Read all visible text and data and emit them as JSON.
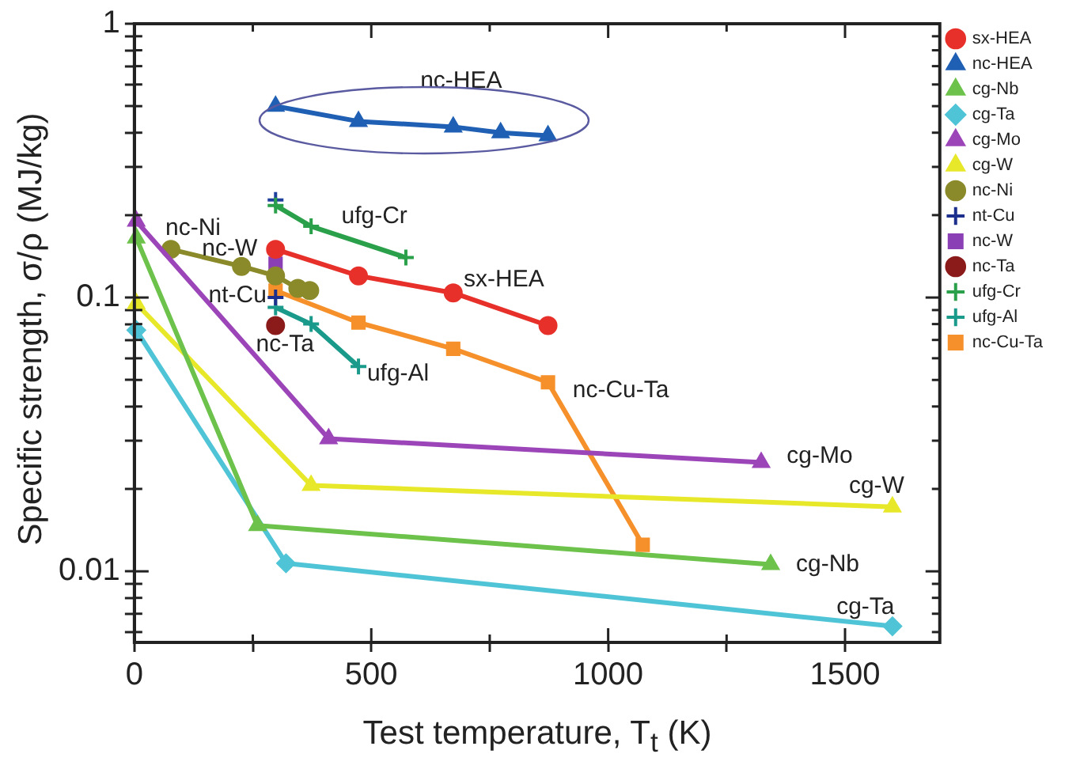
{
  "chart_data": {
    "type": "line",
    "xlabel": "Test temperature, T$_{t}$ (K)",
    "ylabel": "Specific strength, σ/ρ (MJ/kg)",
    "xlim": [
      0,
      1700
    ],
    "xticks": [
      0,
      {
        "value": 250,
        "label": null
      },
      500,
      {
        "value": 750,
        "label": null
      },
      1000,
      {
        "value": 1250,
        "label": null
      },
      1500
    ],
    "ylim": [
      0.0055,
      1
    ],
    "yticks": [
      {
        "value": 0.006,
        "label": null
      },
      {
        "value": 0.007,
        "label": null
      },
      {
        "value": 0.008,
        "label": null
      },
      {
        "value": 0.009,
        "label": null
      },
      0.01,
      {
        "value": 0.02,
        "label": null
      },
      {
        "value": 0.03,
        "label": null
      },
      {
        "value": 0.04,
        "label": null
      },
      {
        "value": 0.05,
        "label": null
      },
      {
        "value": 0.06,
        "label": null
      },
      {
        "value": 0.07,
        "label": null
      },
      {
        "value": 0.08,
        "label": null
      },
      {
        "value": 0.09,
        "label": null
      },
      0.1,
      {
        "value": 0.2,
        "label": null
      },
      {
        "value": 0.3,
        "label": null
      },
      {
        "value": 0.4,
        "label": null
      },
      {
        "value": 0.5,
        "label": null
      },
      {
        "value": 0.6,
        "label": null
      },
      {
        "value": 0.7,
        "label": null
      },
      {
        "value": 0.8,
        "label": null
      },
      {
        "value": 0.9,
        "label": null
      },
      1
    ],
    "log": "y",
    "grid": false,
    "legend": "right",
    "line_style": "solid",
    "series": [
      {
        "name": "sx-HEA",
        "color": "#e8302a",
        "marker": "circle",
        "x": [
          298,
          473,
          673,
          873
        ],
        "values": [
          0.15,
          0.12,
          0.104,
          0.079
        ]
      },
      {
        "name": "nc-HEA",
        "color": "#1f5fb4",
        "marker": "triangle",
        "x": [
          298,
          473,
          673,
          773,
          873
        ],
        "values": [
          0.5,
          0.44,
          0.42,
          0.4,
          0.39
        ]
      },
      {
        "name": "cg-Nb",
        "color": "#6cc24a",
        "marker": "triangle",
        "x": [
          4,
          260,
          1343
        ],
        "values": [
          0.165,
          0.0147,
          0.0106
        ]
      },
      {
        "name": "cg-Ta",
        "color": "#4fc4d6",
        "marker": "diamond",
        "x": [
          4,
          320,
          1600
        ],
        "values": [
          0.076,
          0.0107,
          0.0063
        ]
      },
      {
        "name": "cg-Mo",
        "color": "#9b45b8",
        "marker": "triangle",
        "x": [
          4,
          410,
          1323
        ],
        "values": [
          0.19,
          0.0305,
          0.025
        ]
      },
      {
        "name": "cg-W",
        "color": "#e8e82a",
        "marker": "triangle",
        "x": [
          4,
          373,
          1600
        ],
        "values": [
          0.095,
          0.0206,
          0.0172
        ]
      },
      {
        "name": "nc-Ni",
        "color": "#8a8a2a",
        "marker": "circle",
        "x": [
          77,
          226,
          298,
          345,
          370
        ],
        "values": [
          0.15,
          0.13,
          0.12,
          0.108,
          0.106
        ]
      },
      {
        "name": "nt-Cu",
        "color": "#1c2f8c",
        "marker": "cross",
        "x": [
          298
        ],
        "values": [
          0.1
        ]
      },
      {
        "name": "nc-W",
        "color": "#8b3fb5",
        "marker": "square",
        "x": [
          298
        ],
        "values": [
          0.133
        ]
      },
      {
        "name": "nc-Ta",
        "color": "#8b1a1a",
        "marker": "circle",
        "x": [
          298
        ],
        "values": [
          0.079
        ]
      },
      {
        "name": "ufg-Cr",
        "color": "#2aa04a",
        "marker": "cross",
        "x": [
          298,
          373,
          573
        ],
        "values": [
          0.217,
          0.182,
          0.14
        ]
      },
      {
        "name": "ufg-Al",
        "color": "#1a9a8a",
        "marker": "cross",
        "x": [
          298,
          373,
          473
        ],
        "values": [
          0.092,
          0.08,
          0.056
        ]
      },
      {
        "color": "#1f3f9c",
        "marker": "cross",
        "x": [
          298
        ],
        "values": [
          0.227
        ]
      },
      {
        "name": "nc-Cu-Ta",
        "color": "#f5902a",
        "marker": "square",
        "x": [
          298,
          473,
          673,
          873,
          1073
        ],
        "values": [
          0.106,
          0.081,
          0.065,
          0.049,
          0.0125
        ]
      }
    ]
  }
}
